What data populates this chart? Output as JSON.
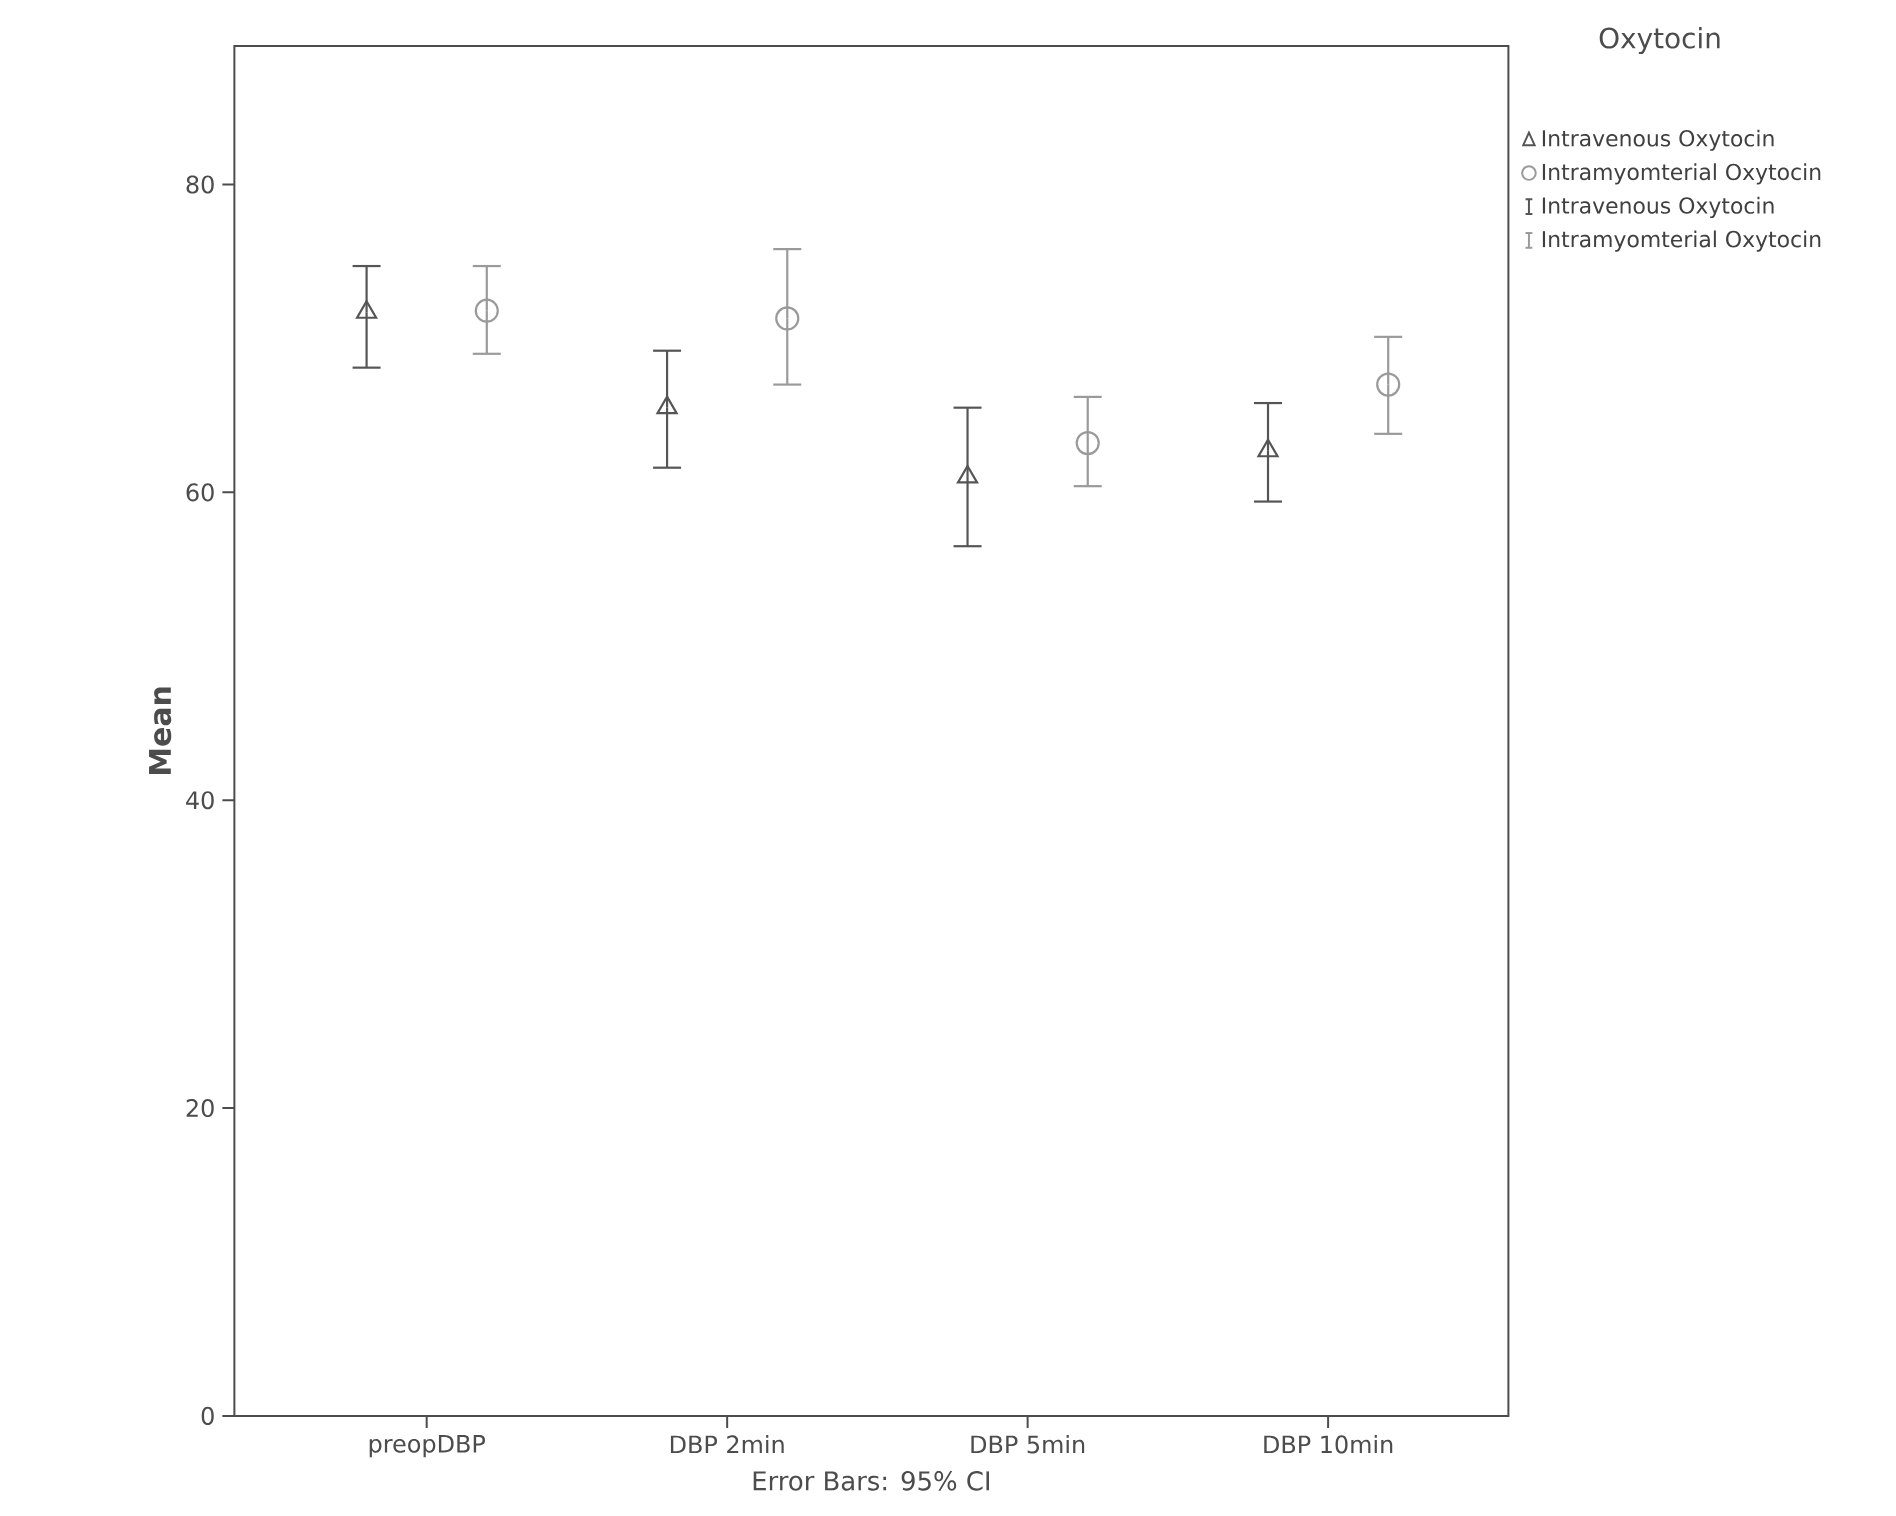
{
  "chart_data": {
    "type": "scatter",
    "categories": [
      "preopDBP",
      "DBP 2min",
      "DBP 5min",
      "DBP 10min"
    ],
    "ylabel": "Mean",
    "legend_title": "Oxytocin",
    "annotations": [
      "Error Bars: 95% CI"
    ],
    "ylim": [
      0,
      89
    ],
    "yticks": [
      0,
      20,
      40,
      60,
      80
    ],
    "grid": false,
    "legend": "top right",
    "series": [
      {
        "name": "Intravenous Oxytocin",
        "color": "#555555",
        "marker": "triangle",
        "values": [
          71.7,
          65.5,
          61.0,
          62.7
        ],
        "errors": [
          [
            68.1,
            74.7
          ],
          [
            61.6,
            69.2
          ],
          [
            56.5,
            65.5
          ],
          [
            59.4,
            65.8
          ]
        ]
      },
      {
        "name": "Intramyomterial Oxytocin",
        "color": "#9a9a9a",
        "marker": "circle",
        "values": [
          71.8,
          71.3,
          63.2,
          67.0
        ],
        "errors": [
          [
            69.0,
            74.7
          ],
          [
            67.0,
            75.8
          ],
          [
            60.4,
            66.2
          ],
          [
            63.8,
            70.1
          ]
        ]
      }
    ]
  }
}
